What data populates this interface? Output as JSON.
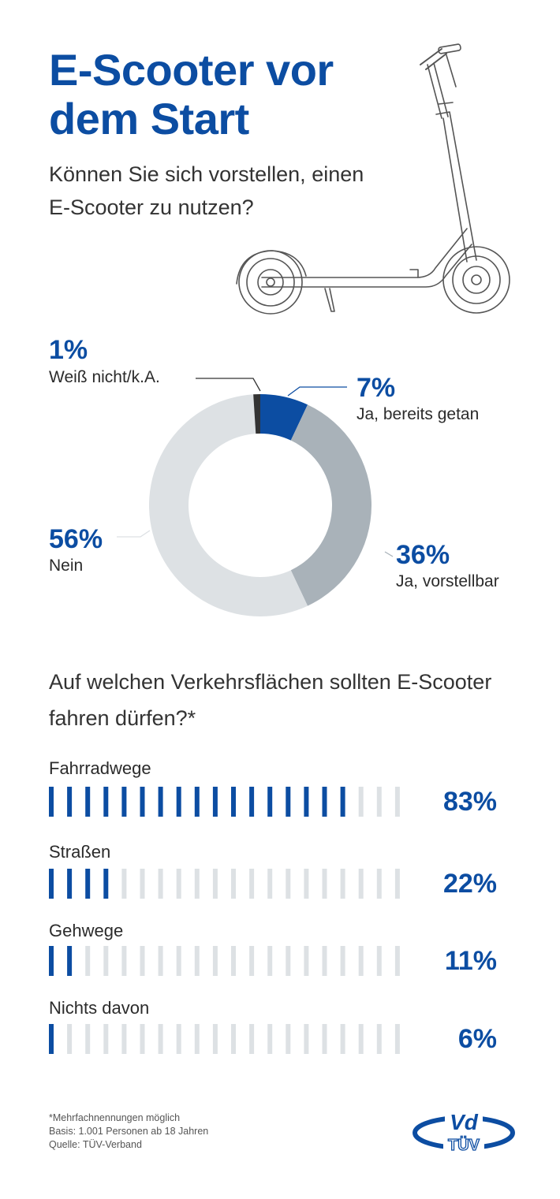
{
  "header": {
    "title": "E-Scooter vor dem Start",
    "subtitle": "Können Sie sich vorstellen, einen E-Scooter zu nutzen?"
  },
  "colors": {
    "brand_blue": "#0c4da2",
    "gray_mid": "#a9b2b9",
    "gray_light": "#dde1e4",
    "dark": "#333333"
  },
  "chart_data": [
    {
      "type": "pie",
      "title": "Können Sie sich vorstellen, einen E-Scooter zu nutzen?",
      "unit": "%",
      "slices": [
        {
          "label": "Ja, bereits getan",
          "value": 7,
          "display": "7%",
          "color": "#0c4da2"
        },
        {
          "label": "Ja, vorstellbar",
          "value": 36,
          "display": "36%",
          "color": "#a9b2b9"
        },
        {
          "label": "Nein",
          "value": 56,
          "display": "56%",
          "color": "#dde1e4"
        },
        {
          "label": "Weiß nicht/k.A.",
          "value": 1,
          "display": "1%",
          "color": "#333333"
        }
      ]
    },
    {
      "type": "bar",
      "title": "Auf welchen Verkehrsflächen sollten E-Scooter fahren dürfen?*",
      "unit": "%",
      "segments": 20,
      "categories": [
        "Fahrradwege",
        "Straßen",
        "Gehwege",
        "Nichts davon"
      ],
      "values": [
        83,
        22,
        11,
        6
      ],
      "labels": [
        "83%",
        "22%",
        "11%",
        "6%"
      ],
      "xlim": [
        0,
        100
      ]
    }
  ],
  "footnote": {
    "line1": "*Mehrfachnennungen möglich",
    "line2": "Basis: 1.001 Personen ab 18 Jahren",
    "line3": "Quelle: TÜV-Verband"
  },
  "logo": {
    "top": "Vd",
    "bottom": "TÜV"
  }
}
